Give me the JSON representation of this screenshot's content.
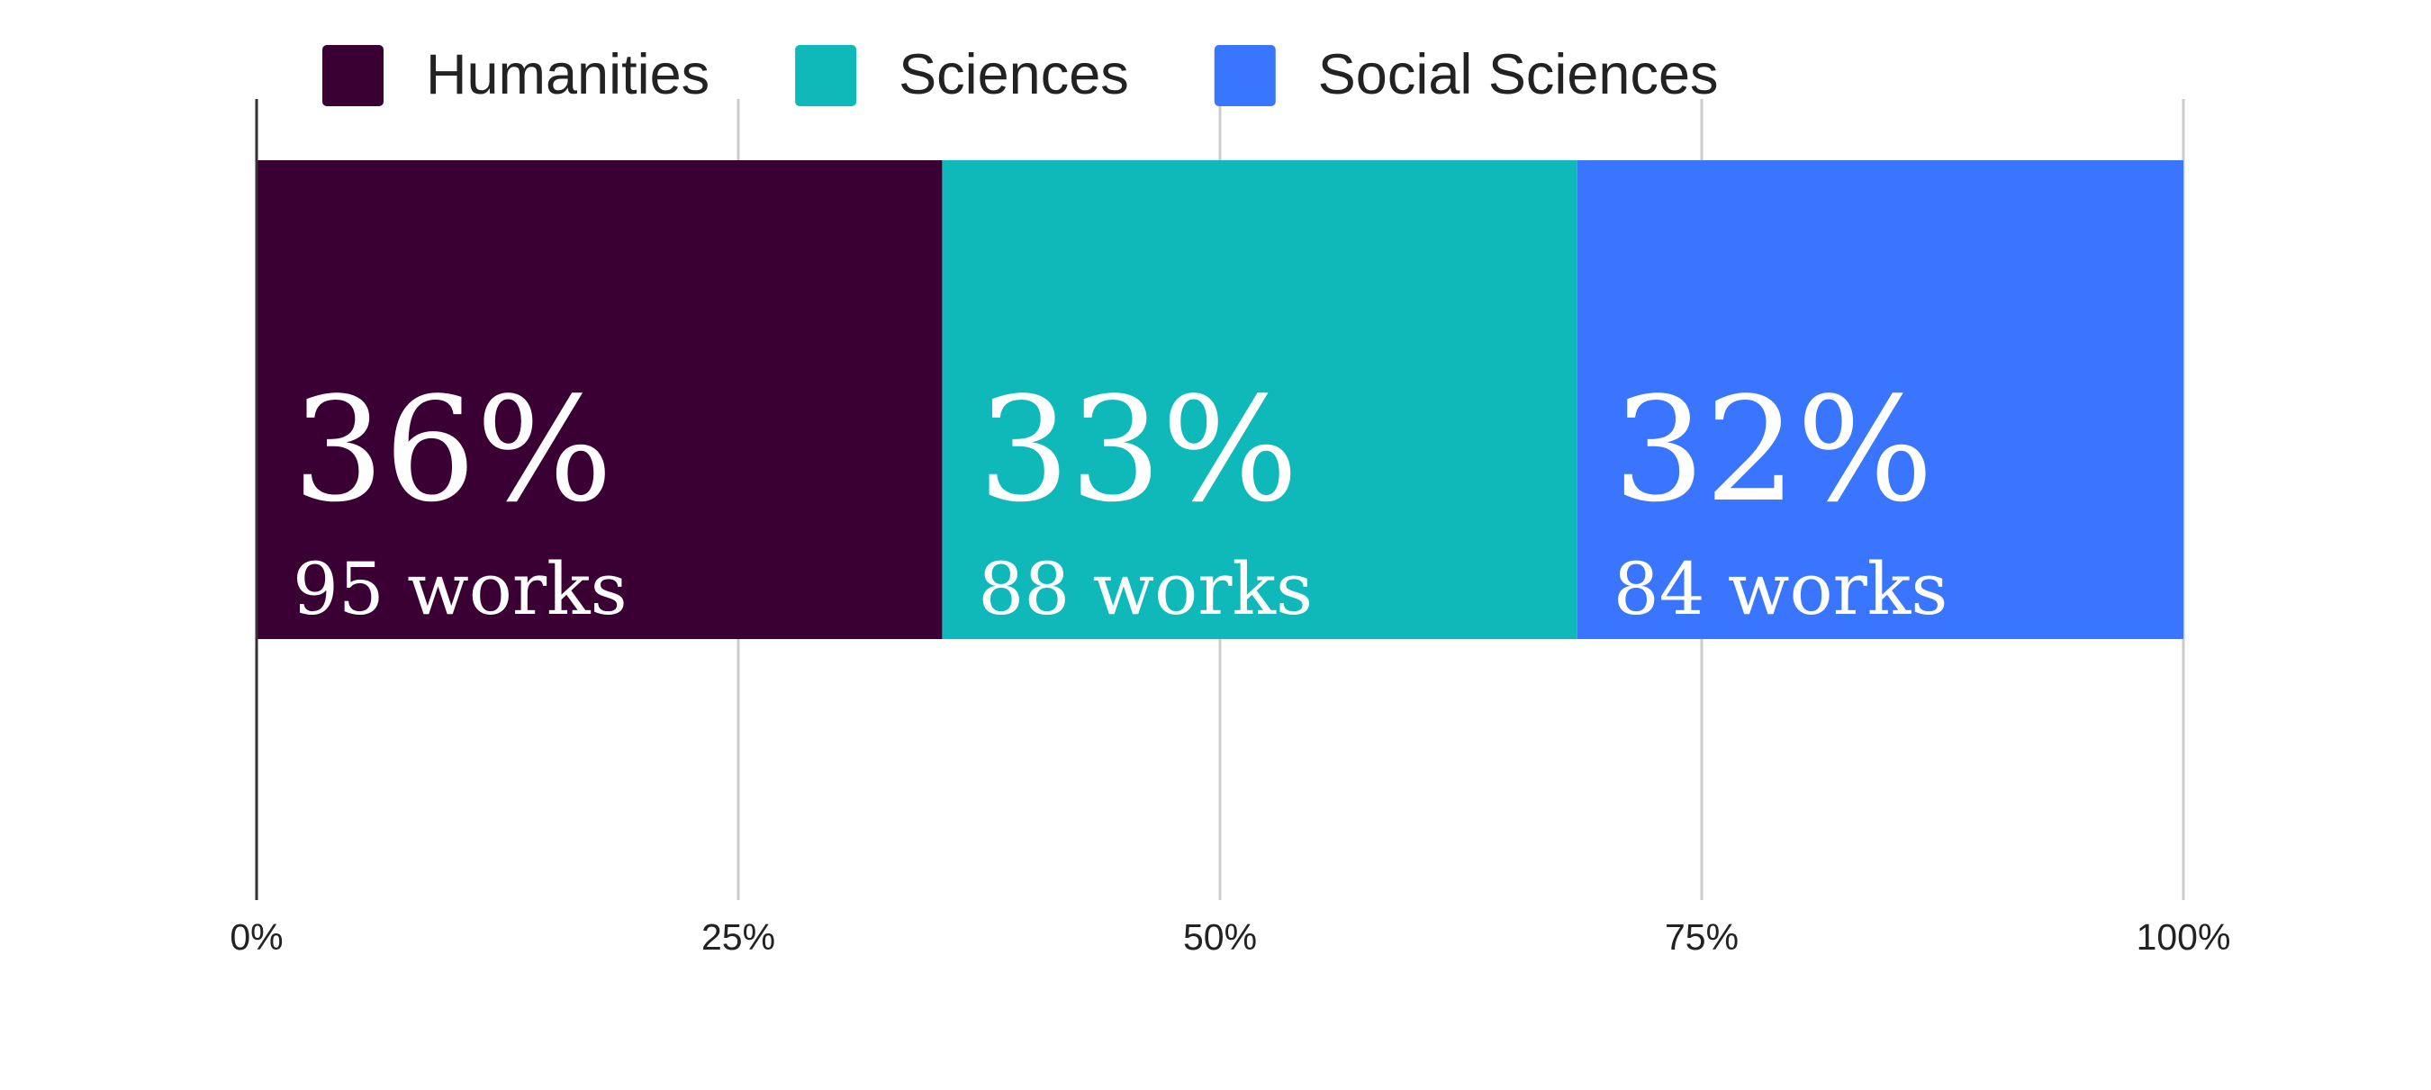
{
  "chart_data": {
    "type": "bar",
    "orientation": "horizontal",
    "stacked": "percent",
    "title": "",
    "xlabel": "",
    "ylabel": "",
    "xlim": [
      0,
      100
    ],
    "x_ticks": [
      "0%",
      "25%",
      "50%",
      "75%",
      "100%"
    ],
    "grid": true,
    "legend_position": "top",
    "series": [
      {
        "name": "Humanities",
        "value": 95,
        "percent_label": "36%",
        "count_label": "95 works",
        "color": "#3b0033"
      },
      {
        "name": "Sciences",
        "value": 88,
        "percent_label": "33%",
        "count_label": "88 works",
        "color": "#0fb9b9"
      },
      {
        "name": "Social Sciences",
        "value": 84,
        "percent_label": "32%",
        "count_label": "84 works",
        "color": "#3a75ff"
      }
    ]
  }
}
